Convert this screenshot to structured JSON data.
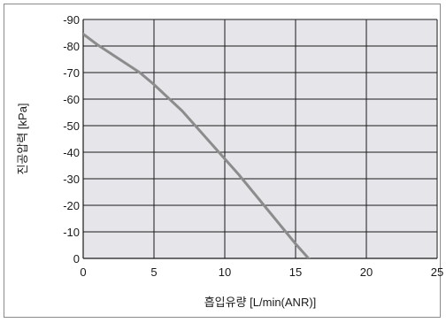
{
  "chart_data": {
    "type": "line",
    "title": "",
    "xlabel": "흡입유량 [L/min(ANR)]",
    "ylabel": "진공압력 [kPa]",
    "xlim": [
      0,
      25
    ],
    "ylim": [
      0,
      -90
    ],
    "xticks": [
      "0",
      "5",
      "10",
      "15",
      "20",
      "25"
    ],
    "yticks": [
      "0",
      "-10",
      "-20",
      "-30",
      "-40",
      "-50",
      "-60",
      "-70",
      "-80",
      "-90"
    ],
    "grid": true,
    "series": [
      {
        "x": [
          0,
          1,
          2,
          3,
          4,
          5,
          6,
          7,
          8,
          9,
          10,
          11,
          12,
          13,
          14,
          15,
          16,
          16.8
        ],
        "y": [
          -84.5,
          -80.5,
          -77,
          -73.5,
          -70,
          -65.5,
          -60.5,
          -55.5,
          -49.5,
          -43.5,
          -37.5,
          -31.5,
          -25,
          -18.5,
          -12,
          -5.5,
          0.5,
          6
        ]
      }
    ],
    "colors": {
      "plot_bg": "#e6e6ea",
      "grid": "#1a1a1a",
      "line": "#8c8c8c"
    }
  }
}
